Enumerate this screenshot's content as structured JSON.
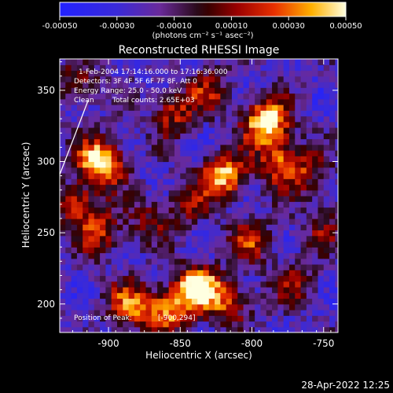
{
  "colorbar": {
    "ticks": [
      "-0.00050",
      "-0.00030",
      "-0.00010",
      "0.00010",
      "0.00030",
      "0.00050"
    ],
    "unit_text": "(photons cm⁻² s⁻¹ asec⁻²)"
  },
  "chart_data": {
    "type": "heatmap",
    "title": "Reconstructed RHESSI Image",
    "xlabel": "Heliocentric X (arcsec)",
    "ylabel": "Heliocentric Y (arcsec)",
    "xlim": [
      -934,
      -740
    ],
    "ylim": [
      180,
      372
    ],
    "x_ticks": [
      -900,
      -850,
      -800,
      -750
    ],
    "x_tick_labels": [
      "-900",
      "-850",
      "-800",
      "-750"
    ],
    "y_ticks": [
      200,
      250,
      300,
      350
    ],
    "y_tick_labels": [
      "200",
      "250",
      "300",
      "350"
    ],
    "colorbar_range": [
      -0.0005,
      0.0005
    ],
    "annotations": [
      "1-Feb-2004 17:14:16.000 to 17:16:36.000",
      "Detectors: 3F 4F 5F 6F 7F 8F, Att 0",
      "Energy Range: 25.0 - 50.0 keV",
      "Clean",
      "Total counts: 2.65E+03"
    ],
    "peak_label": "Position of Peak:",
    "peak_value": "[-900,294]",
    "peak_position": [
      -900,
      294
    ],
    "bright_sources": [
      {
        "x": -905,
        "y": 300,
        "strength": 1.0
      },
      {
        "x": -838,
        "y": 212,
        "strength": 1.0
      },
      {
        "x": -790,
        "y": 328,
        "strength": 1.0
      },
      {
        "x": -820,
        "y": 290,
        "strength": 0.85
      },
      {
        "x": -780,
        "y": 300,
        "strength": 0.65
      },
      {
        "x": -860,
        "y": 195,
        "strength": 0.7
      },
      {
        "x": -885,
        "y": 200,
        "strength": 0.6
      },
      {
        "x": -922,
        "y": 270,
        "strength": 0.55
      },
      {
        "x": -905,
        "y": 250,
        "strength": 0.5
      },
      {
        "x": -800,
        "y": 245,
        "strength": 0.45
      },
      {
        "x": -855,
        "y": 335,
        "strength": 0.5
      },
      {
        "x": -830,
        "y": 350,
        "strength": 0.4
      },
      {
        "x": -760,
        "y": 290,
        "strength": 0.35
      },
      {
        "x": -770,
        "y": 215,
        "strength": 0.4
      },
      {
        "x": -815,
        "y": 200,
        "strength": 0.5
      },
      {
        "x": -870,
        "y": 260,
        "strength": 0.35
      },
      {
        "x": -920,
        "y": 355,
        "strength": 0.4
      },
      {
        "x": -845,
        "y": 270,
        "strength": 0.3
      },
      {
        "x": -750,
        "y": 255,
        "strength": 0.3
      }
    ]
  },
  "footer": {
    "timestamp": "28-Apr-2022 12:25"
  }
}
